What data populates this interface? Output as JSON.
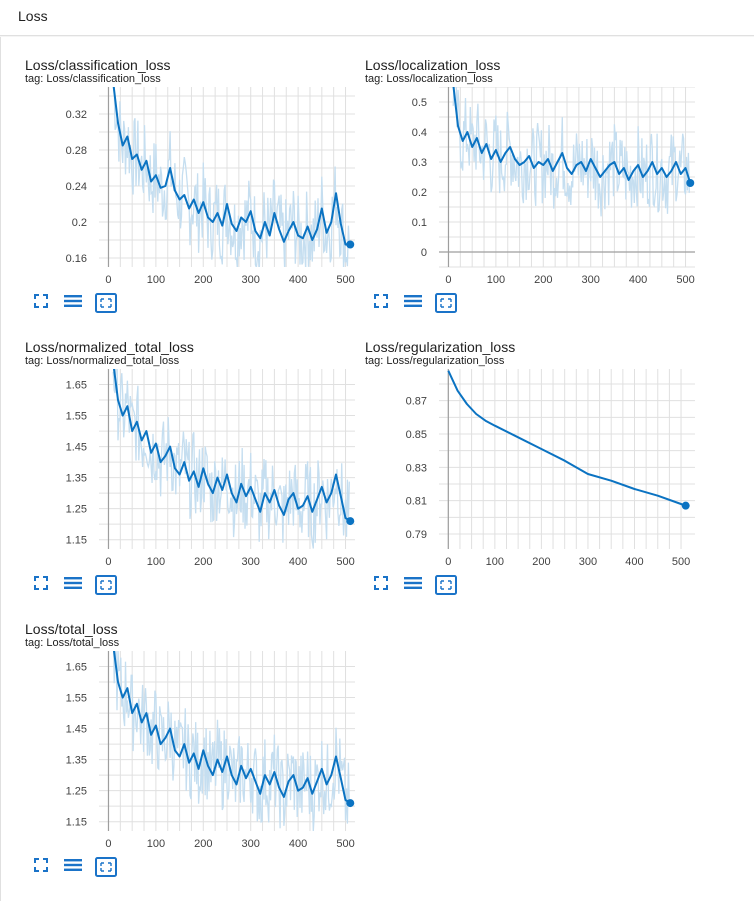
{
  "header": {
    "title": "Loss"
  },
  "toolbar_icons": [
    "expand-icon",
    "list-icon",
    "fit-domain-icon"
  ],
  "colors": {
    "line": "#0b73c2",
    "smoothed_bg": "#c5def0",
    "grid": "#e0e0e0",
    "axis": "#9e9e9e"
  },
  "chart_data": [
    {
      "type": "line",
      "title": "Loss/classification_loss",
      "tag": "tag: Loss/classification_loss",
      "xlim": [
        -20,
        520
      ],
      "ylim": [
        0.15,
        0.35
      ],
      "xticks": [
        "0",
        "100",
        "200",
        "300",
        "400",
        "500"
      ],
      "yticks": [
        "0.16",
        "0.2",
        "0.24",
        "0.28",
        "0.32"
      ],
      "series": [
        {
          "x": [
            10,
            20,
            30,
            40,
            50,
            60,
            70,
            80,
            90,
            100,
            110,
            120,
            130,
            140,
            150,
            160,
            170,
            180,
            190,
            200,
            210,
            220,
            230,
            240,
            250,
            260,
            270,
            280,
            290,
            300,
            310,
            320,
            330,
            340,
            350,
            360,
            370,
            380,
            390,
            400,
            410,
            420,
            430,
            440,
            450,
            460,
            470,
            480,
            490,
            500,
            510
          ],
          "values": [
            0.355,
            0.31,
            0.285,
            0.295,
            0.27,
            0.275,
            0.258,
            0.268,
            0.245,
            0.252,
            0.238,
            0.24,
            0.26,
            0.235,
            0.225,
            0.23,
            0.215,
            0.225,
            0.21,
            0.222,
            0.205,
            0.2,
            0.21,
            0.196,
            0.22,
            0.198,
            0.19,
            0.205,
            0.2,
            0.212,
            0.19,
            0.182,
            0.2,
            0.185,
            0.21,
            0.192,
            0.178,
            0.19,
            0.2,
            0.185,
            0.182,
            0.195,
            0.18,
            0.192,
            0.215,
            0.188,
            0.2,
            0.232,
            0.198,
            0.175,
            0.175
          ]
        }
      ]
    },
    {
      "type": "line",
      "title": "Loss/localization_loss",
      "tag": "tag: Loss/localization_loss",
      "xlim": [
        -20,
        520
      ],
      "ylim": [
        -0.05,
        0.55
      ],
      "xticks": [
        "0",
        "100",
        "200",
        "300",
        "400",
        "500"
      ],
      "yticks": [
        "0",
        "0.1",
        "0.2",
        "0.3",
        "0.4",
        "0.5"
      ],
      "series": [
        {
          "x": [
            10,
            20,
            30,
            40,
            50,
            60,
            70,
            80,
            90,
            100,
            110,
            120,
            130,
            140,
            150,
            160,
            170,
            180,
            190,
            200,
            210,
            220,
            230,
            240,
            250,
            260,
            270,
            280,
            290,
            300,
            310,
            320,
            330,
            340,
            350,
            360,
            370,
            380,
            390,
            400,
            410,
            420,
            430,
            440,
            450,
            460,
            470,
            480,
            490,
            500,
            510
          ],
          "values": [
            0.56,
            0.42,
            0.37,
            0.4,
            0.35,
            0.38,
            0.33,
            0.36,
            0.31,
            0.34,
            0.3,
            0.33,
            0.35,
            0.31,
            0.29,
            0.3,
            0.32,
            0.28,
            0.3,
            0.29,
            0.31,
            0.27,
            0.3,
            0.33,
            0.28,
            0.26,
            0.29,
            0.3,
            0.27,
            0.31,
            0.28,
            0.25,
            0.27,
            0.29,
            0.3,
            0.26,
            0.28,
            0.24,
            0.27,
            0.29,
            0.25,
            0.27,
            0.3,
            0.26,
            0.28,
            0.25,
            0.27,
            0.3,
            0.26,
            0.28,
            0.23
          ]
        }
      ]
    },
    {
      "type": "line",
      "title": "Loss/normalized_total_loss",
      "tag": "tag: Loss/normalized_total_loss",
      "xlim": [
        -20,
        520
      ],
      "ylim": [
        1.12,
        1.7
      ],
      "xticks": [
        "0",
        "100",
        "200",
        "300",
        "400",
        "500"
      ],
      "yticks": [
        "1.15",
        "1.25",
        "1.35",
        "1.45",
        "1.55",
        "1.65"
      ],
      "series": [
        {
          "x": [
            10,
            20,
            30,
            40,
            50,
            60,
            70,
            80,
            90,
            100,
            110,
            120,
            130,
            140,
            150,
            160,
            170,
            180,
            190,
            200,
            210,
            220,
            230,
            240,
            250,
            260,
            270,
            280,
            290,
            300,
            310,
            320,
            330,
            340,
            350,
            360,
            370,
            380,
            390,
            400,
            410,
            420,
            430,
            440,
            450,
            460,
            470,
            480,
            490,
            500,
            510
          ],
          "values": [
            1.72,
            1.6,
            1.55,
            1.58,
            1.5,
            1.53,
            1.47,
            1.5,
            1.43,
            1.46,
            1.4,
            1.42,
            1.45,
            1.38,
            1.36,
            1.4,
            1.34,
            1.37,
            1.32,
            1.38,
            1.33,
            1.3,
            1.35,
            1.31,
            1.36,
            1.3,
            1.27,
            1.33,
            1.29,
            1.32,
            1.28,
            1.24,
            1.3,
            1.27,
            1.31,
            1.26,
            1.23,
            1.28,
            1.3,
            1.25,
            1.26,
            1.29,
            1.24,
            1.28,
            1.32,
            1.27,
            1.3,
            1.36,
            1.29,
            1.22,
            1.21
          ]
        }
      ]
    },
    {
      "type": "line",
      "title": "Loss/regularization_loss",
      "tag": "tag: Loss/regularization_loss",
      "xlim": [
        -20,
        530
      ],
      "ylim": [
        0.781,
        0.889
      ],
      "xticks": [
        "0",
        "100",
        "200",
        "300",
        "400",
        "500"
      ],
      "yticks": [
        "0.79",
        "0.81",
        "0.83",
        "0.85",
        "0.87"
      ],
      "series": [
        {
          "x": [
            0,
            20,
            40,
            60,
            80,
            100,
            150,
            200,
            250,
            300,
            350,
            400,
            450,
            500,
            510
          ],
          "values": [
            0.888,
            0.876,
            0.868,
            0.862,
            0.858,
            0.855,
            0.848,
            0.841,
            0.834,
            0.826,
            0.822,
            0.817,
            0.813,
            0.808,
            0.807
          ]
        }
      ]
    },
    {
      "type": "line",
      "title": "Loss/total_loss",
      "tag": "tag: Loss/total_loss",
      "xlim": [
        -20,
        520
      ],
      "ylim": [
        1.12,
        1.7
      ],
      "xticks": [
        "0",
        "100",
        "200",
        "300",
        "400",
        "500"
      ],
      "yticks": [
        "1.15",
        "1.25",
        "1.35",
        "1.45",
        "1.55",
        "1.65"
      ],
      "series": [
        {
          "x": [
            10,
            20,
            30,
            40,
            50,
            60,
            70,
            80,
            90,
            100,
            110,
            120,
            130,
            140,
            150,
            160,
            170,
            180,
            190,
            200,
            210,
            220,
            230,
            240,
            250,
            260,
            270,
            280,
            290,
            300,
            310,
            320,
            330,
            340,
            350,
            360,
            370,
            380,
            390,
            400,
            410,
            420,
            430,
            440,
            450,
            460,
            470,
            480,
            490,
            500,
            510
          ],
          "values": [
            1.72,
            1.6,
            1.55,
            1.58,
            1.5,
            1.53,
            1.47,
            1.5,
            1.43,
            1.46,
            1.4,
            1.42,
            1.45,
            1.38,
            1.36,
            1.4,
            1.34,
            1.37,
            1.32,
            1.38,
            1.33,
            1.3,
            1.35,
            1.31,
            1.36,
            1.3,
            1.27,
            1.33,
            1.29,
            1.32,
            1.28,
            1.24,
            1.3,
            1.27,
            1.31,
            1.26,
            1.23,
            1.28,
            1.3,
            1.25,
            1.26,
            1.29,
            1.24,
            1.28,
            1.32,
            1.27,
            1.3,
            1.36,
            1.29,
            1.22,
            1.21
          ]
        }
      ]
    }
  ]
}
